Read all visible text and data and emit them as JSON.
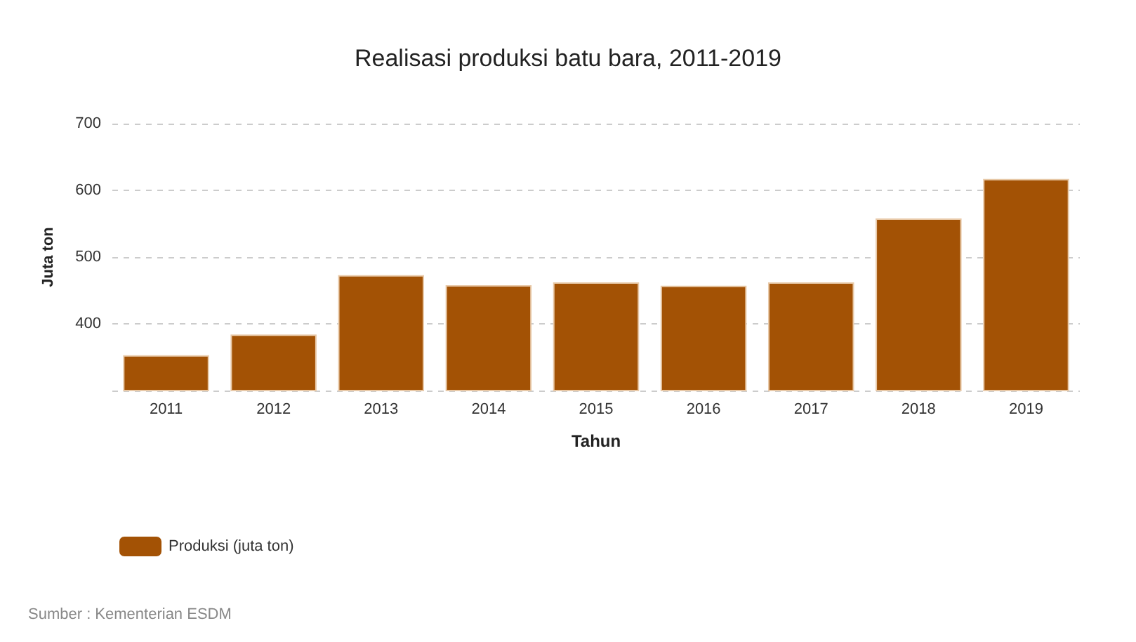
{
  "chart_data": {
    "type": "bar",
    "title": "Realisasi produksi batu bara, 2011-2019",
    "xlabel": "Tahun",
    "ylabel": "Juta ton",
    "categories": [
      "2011",
      "2012",
      "2013",
      "2014",
      "2015",
      "2016",
      "2017",
      "2018",
      "2019"
    ],
    "series": [
      {
        "name": "Produksi (juta ton)",
        "color": "#a35205",
        "values": [
          353,
          384,
          473,
          458,
          462,
          457,
          462,
          558,
          617
        ]
      }
    ],
    "ylim": [
      300,
      700
    ],
    "yticks": [
      {
        "value": 300,
        "label": null
      },
      400,
      500,
      600,
      700
    ],
    "grid": "y",
    "legend": "bottom left",
    "annotations": [
      "Sumber : Kementerian ESDM"
    ]
  }
}
